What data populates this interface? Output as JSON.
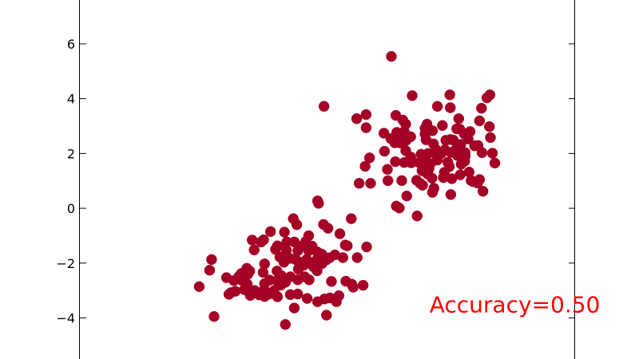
{
  "chart_data": {
    "type": "scatter",
    "title": "",
    "xlabel": "",
    "ylabel": "",
    "xlim": [
      0,
      10
    ],
    "ylim": [
      -5.5,
      7.6
    ],
    "grid": false,
    "legend": "none",
    "x_ticks": [],
    "y_ticks": [
      {
        "value": 6,
        "label": "6"
      },
      {
        "value": 4,
        "label": "4"
      },
      {
        "value": 2,
        "label": "2"
      },
      {
        "value": 0,
        "label": "0"
      },
      {
        "value": -2,
        "label": "−2"
      },
      {
        "value": -4,
        "label": "−4"
      }
    ],
    "point_color": "#a50026",
    "annotation": {
      "text": "Accuracy=0.50",
      "color": "#ff0000",
      "x": 7.06,
      "y": -3.8
    },
    "points": [
      [
        6.29,
        5.54
      ],
      [
        8.28,
        4.14
      ],
      [
        8.22,
        4.03
      ],
      [
        7.47,
        4.14
      ],
      [
        6.71,
        4.11
      ],
      [
        4.93,
        3.72
      ],
      [
        7.22,
        3.72
      ],
      [
        7.48,
        3.67
      ],
      [
        8.11,
        3.65
      ],
      [
        6.38,
        3.39
      ],
      [
        5.78,
        3.42
      ],
      [
        5.59,
        3.27
      ],
      [
        7.65,
        3.27
      ],
      [
        6.52,
        3.22
      ],
      [
        8.07,
        3.19
      ],
      [
        6.58,
        3.07
      ],
      [
        7.01,
        3.07
      ],
      [
        7.32,
        3.02
      ],
      [
        5.78,
        2.94
      ],
      [
        6.97,
        2.92
      ],
      [
        7.61,
        2.9
      ],
      [
        7.67,
        2.89
      ],
      [
        8.27,
        2.98
      ],
      [
        6.4,
        2.77
      ],
      [
        6.55,
        2.8
      ],
      [
        7.12,
        2.83
      ],
      [
        7.88,
        2.8
      ],
      [
        6.14,
        2.74
      ],
      [
        6.97,
        2.71
      ],
      [
        7.76,
        2.72
      ],
      [
        8.29,
        2.58
      ],
      [
        6.28,
        2.54
      ],
      [
        6.43,
        2.56
      ],
      [
        6.68,
        2.61
      ],
      [
        6.59,
        2.48
      ],
      [
        6.99,
        2.5
      ],
      [
        7.39,
        2.48
      ],
      [
        7.48,
        2.51
      ],
      [
        7.54,
        2.49
      ],
      [
        7.84,
        2.53
      ],
      [
        6.36,
        2.39
      ],
      [
        6.48,
        2.38
      ],
      [
        7.69,
        2.33
      ],
      [
        7.97,
        2.28
      ],
      [
        8.04,
        2.29
      ],
      [
        7.14,
        2.35
      ],
      [
        6.15,
        2.08
      ],
      [
        6.58,
        2.1
      ],
      [
        7.19,
        2.14
      ],
      [
        7.37,
        2.13
      ],
      [
        7.61,
        2.19
      ],
      [
        7.78,
        2.03
      ],
      [
        8.12,
        2.03
      ],
      [
        8.33,
        2.01
      ],
      [
        5.85,
        1.84
      ],
      [
        6.68,
        1.87
      ],
      [
        6.89,
        1.97
      ],
      [
        7.03,
        2.0
      ],
      [
        7.2,
        1.95
      ],
      [
        7.3,
        2.0
      ],
      [
        7.49,
        2.04
      ],
      [
        7.62,
        1.93
      ],
      [
        7.78,
        1.9
      ],
      [
        6.37,
        1.7
      ],
      [
        6.55,
        1.67
      ],
      [
        6.69,
        1.66
      ],
      [
        6.85,
        1.67
      ],
      [
        6.96,
        1.67
      ],
      [
        7.08,
        1.63
      ],
      [
        7.22,
        1.76
      ],
      [
        7.43,
        1.68
      ],
      [
        7.77,
        1.72
      ],
      [
        7.7,
        1.61
      ],
      [
        8.38,
        1.65
      ],
      [
        5.76,
        1.53
      ],
      [
        6.21,
        1.42
      ],
      [
        6.91,
        1.37
      ],
      [
        7.05,
        1.44
      ],
      [
        7.46,
        1.52
      ],
      [
        7.68,
        1.22
      ],
      [
        7.02,
        1.25
      ],
      [
        7.36,
        1.31
      ],
      [
        7.86,
        1.32
      ],
      [
        6.5,
        1.01
      ],
      [
        6.8,
        1.02
      ],
      [
        6.87,
        0.91
      ],
      [
        7.11,
        1.1
      ],
      [
        7.34,
        1.12
      ],
      [
        7.51,
        1.08
      ],
      [
        7.9,
        1.01
      ],
      [
        8.07,
        1.05
      ],
      [
        7.94,
        0.97
      ],
      [
        8.03,
        0.92
      ],
      [
        5.64,
        0.91
      ],
      [
        5.87,
        0.91
      ],
      [
        6.22,
        1.01
      ],
      [
        6.92,
        0.84
      ],
      [
        7.15,
        0.73
      ],
      [
        7.12,
        0.58
      ],
      [
        6.6,
        0.45
      ],
      [
        7.49,
        0.5
      ],
      [
        8.14,
        0.62
      ],
      [
        4.82,
        0.18
      ],
      [
        4.8,
        0.27
      ],
      [
        6.39,
        0.08
      ],
      [
        6.45,
        0.01
      ],
      [
        6.81,
        -0.28
      ],
      [
        4.31,
        -0.38
      ],
      [
        5.48,
        -0.38
      ],
      [
        4.92,
        -0.59
      ],
      [
        4.38,
        -0.6
      ],
      [
        5.01,
        -0.73
      ],
      [
        3.85,
        -0.85
      ],
      [
        4.13,
        -0.87
      ],
      [
        5.25,
        -0.93
      ],
      [
        4.62,
        -1.0
      ],
      [
        3.71,
        -1.15
      ],
      [
        3.48,
        -1.16
      ],
      [
        3.66,
        -1.23
      ],
      [
        4.18,
        -1.23
      ],
      [
        4.33,
        -1.23
      ],
      [
        4.56,
        -1.21
      ],
      [
        5.36,
        -1.34
      ],
      [
        5.4,
        -1.37
      ],
      [
        5.79,
        -1.41
      ],
      [
        3.99,
        -1.37
      ],
      [
        4.47,
        -1.39
      ],
      [
        4.69,
        -1.38
      ],
      [
        3.52,
        -1.52
      ],
      [
        3.95,
        -1.5
      ],
      [
        4.17,
        -1.53
      ],
      [
        4.4,
        -1.55
      ],
      [
        4.62,
        -1.55
      ],
      [
        4.79,
        -1.59
      ],
      [
        4.86,
        -1.66
      ],
      [
        4.89,
        -1.68
      ],
      [
        5.15,
        -1.7
      ],
      [
        2.66,
        -1.87
      ],
      [
        4.04,
        -1.78
      ],
      [
        4.24,
        -1.83
      ],
      [
        4.35,
        -1.86
      ],
      [
        4.58,
        -1.87
      ],
      [
        4.78,
        -1.89
      ],
      [
        4.98,
        -1.88
      ],
      [
        5.31,
        -1.8
      ],
      [
        5.04,
        -1.81
      ],
      [
        5.6,
        -1.8
      ],
      [
        4.12,
        -1.97
      ],
      [
        4.41,
        -1.94
      ],
      [
        4.52,
        -2.08
      ],
      [
        4.72,
        -2.14
      ],
      [
        4.89,
        -2.02
      ],
      [
        3.73,
        -2.03
      ],
      [
        3.37,
        -2.19
      ],
      [
        3.43,
        -2.29
      ],
      [
        3.7,
        -2.34
      ],
      [
        3.98,
        -2.29
      ],
      [
        4.41,
        -2.22
      ],
      [
        4.79,
        -2.28
      ],
      [
        3.26,
        -2.38
      ],
      [
        3.39,
        -2.41
      ],
      [
        4.07,
        -2.46
      ],
      [
        4.25,
        -2.5
      ],
      [
        4.54,
        -2.5
      ],
      [
        2.62,
        -2.26
      ],
      [
        3.21,
        -2.49
      ],
      [
        2.96,
        -2.53
      ],
      [
        3.11,
        -2.64
      ],
      [
        3.27,
        -2.63
      ],
      [
        3.38,
        -2.77
      ],
      [
        3.83,
        -2.62
      ],
      [
        3.98,
        -2.64
      ],
      [
        4.15,
        -2.7
      ],
      [
        4.4,
        -2.61
      ],
      [
        4.63,
        -2.61
      ],
      [
        3.73,
        -2.75
      ],
      [
        4.06,
        -2.8
      ],
      [
        5.08,
        -2.67
      ],
      [
        5.37,
        -2.66
      ],
      [
        5.49,
        -2.77
      ],
      [
        3.53,
        -3.0
      ],
      [
        3.72,
        -2.98
      ],
      [
        3.92,
        -3.0
      ],
      [
        5.52,
        -2.88
      ],
      [
        5.72,
        -2.81
      ],
      [
        2.41,
        -2.86
      ],
      [
        3.14,
        -3.03
      ],
      [
        3.32,
        -2.97
      ],
      [
        3.44,
        -3.18
      ],
      [
        3.62,
        -3.16
      ],
      [
        3.73,
        -3.22
      ],
      [
        3.82,
        -3.13
      ],
      [
        3.99,
        -3.23
      ],
      [
        4.25,
        -3.15
      ],
      [
        4.4,
        -3.13
      ],
      [
        3.05,
        -3.08
      ],
      [
        3.01,
        -3.14
      ],
      [
        4.59,
        -3.29
      ],
      [
        4.94,
        -3.31
      ],
      [
        5.05,
        -3.27
      ],
      [
        5.23,
        -3.19
      ],
      [
        4.8,
        -3.41
      ],
      [
        5.18,
        -3.41
      ],
      [
        4.33,
        -3.64
      ],
      [
        4.98,
        -3.9
      ],
      [
        2.71,
        -3.95
      ],
      [
        4.15,
        -4.24
      ]
    ]
  }
}
